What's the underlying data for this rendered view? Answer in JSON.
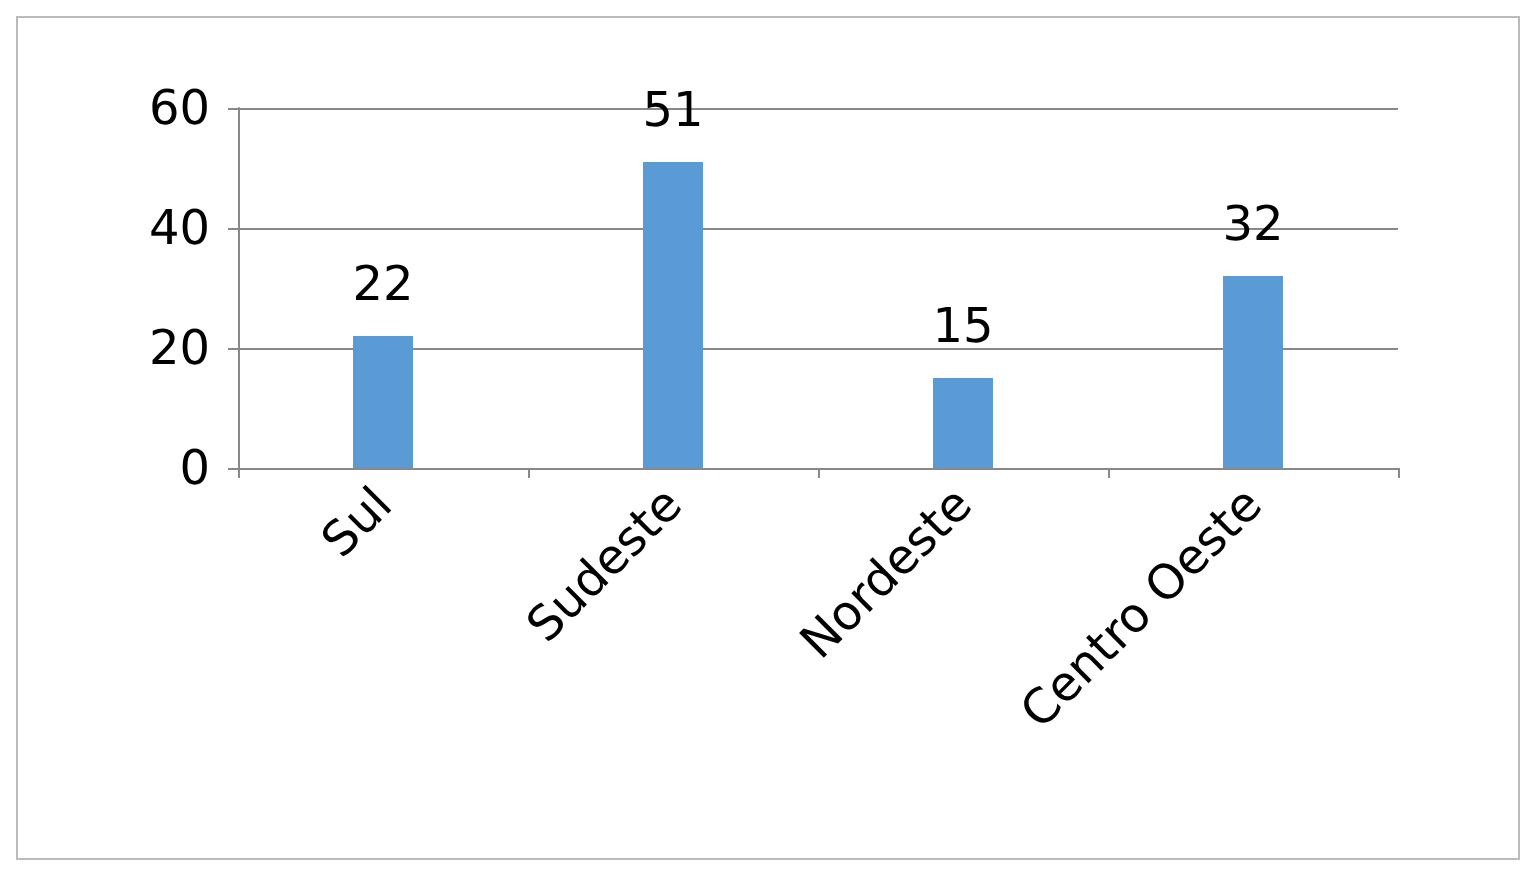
{
  "chart_data": {
    "type": "bar",
    "categories": [
      "Sul",
      "Sudeste",
      "Nordeste",
      "Centro Oeste"
    ],
    "values": [
      22,
      51,
      15,
      32
    ],
    "color": "#5b9bd5",
    "ylim": [
      0,
      60
    ],
    "yticks": [
      0,
      20,
      40,
      60
    ],
    "grid": "y",
    "data_labels": true
  }
}
